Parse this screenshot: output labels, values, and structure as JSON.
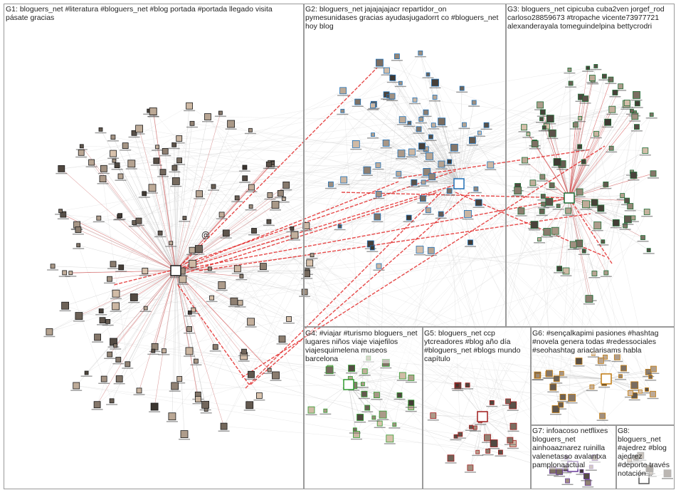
{
  "groups": [
    {
      "id": "G1",
      "label": "G1: bloguers_net #literatura #bloguers_net #blog portada #portada llegado visita\npásate gracias",
      "color": "#1a1a1a"
    },
    {
      "id": "G2",
      "label": "G2: bloguers_net jajajajajacr repartidor_on\npymesunidases gracias ayudasjugadorrt co #bloguers_net\nhoy blog",
      "color": "#1f6fb5"
    },
    {
      "id": "G3",
      "label": "G3: bloguers_net cipicuba cuba2ven jorgef_rod\ncarloso28859673 #tropache vicente73977721\nalexanderayala tomeguindelpina bettycrodri",
      "color": "#1e6b35"
    },
    {
      "id": "G4",
      "label": "G4: #viajar #turismo bloguers_net\nlugares niños viaje viajefilos\nviajesquimelena museos\nbarcelona",
      "color": "#2e9a2e"
    },
    {
      "id": "G5",
      "label": "G5: bloguers_net ccp\nytcreadores #blog año día\n#bloguers_net #blogs mundo\ncapítulo",
      "color": "#a01c1c"
    },
    {
      "id": "G6",
      "label": "G6: #sençalkapimi pasiones #hashtag\n#novela genera todas #redessociales\n#seohashtag ariaclarisams habla",
      "color": "#c07a10"
    },
    {
      "id": "G7",
      "label": "G7: infoacoso netflixes\nbloguers_net\nainhoaaznarez ruinilla\nvalenetasso avalantxa\npamplonaactual",
      "color": "#6a3d9a"
    },
    {
      "id": "G8",
      "label": "G8:\nbloguers_net\n#ajedrez #blog\najedrez\n#deporte través\nnotación...",
      "color": "#555555"
    }
  ],
  "hub_icon_symbol": "@"
}
